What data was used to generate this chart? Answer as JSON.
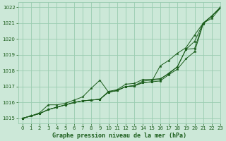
{
  "background_color": "#cce8d8",
  "grid_color": "#99ccb0",
  "line_color": "#1a5c1a",
  "title": "Graphe pression niveau de la mer (hPa)",
  "xlim": [
    -0.5,
    23
  ],
  "ylim": [
    1014.7,
    1022.3
  ],
  "yticks": [
    1015,
    1016,
    1017,
    1018,
    1019,
    1020,
    1021,
    1022
  ],
  "xticks": [
    0,
    1,
    2,
    3,
    4,
    5,
    6,
    7,
    8,
    9,
    10,
    11,
    12,
    13,
    14,
    15,
    16,
    17,
    18,
    19,
    20,
    21,
    22,
    23
  ],
  "xlabel_size": 6.0,
  "series": [
    [
      1015.0,
      1015.15,
      1015.3,
      1015.55,
      1015.7,
      1015.85,
      1016.0,
      1016.1,
      1016.15,
      1016.2,
      1016.7,
      1016.8,
      1017.15,
      1017.2,
      1017.45,
      1017.45,
      1017.5,
      1017.8,
      1018.25,
      1019.35,
      1019.4,
      1021.0,
      1021.45,
      1022.0
    ],
    [
      1015.0,
      1015.15,
      1015.3,
      1015.55,
      1015.7,
      1015.85,
      1016.0,
      1016.1,
      1016.15,
      1016.2,
      1016.65,
      1016.75,
      1017.0,
      1017.05,
      1017.25,
      1017.3,
      1017.35,
      1017.75,
      1018.1,
      1018.75,
      1019.2,
      1020.95,
      1021.45,
      1021.95
    ],
    [
      1015.0,
      1015.15,
      1015.3,
      1015.55,
      1015.7,
      1015.85,
      1016.0,
      1016.1,
      1016.15,
      1016.2,
      1016.65,
      1016.75,
      1017.0,
      1017.05,
      1017.25,
      1017.3,
      1018.3,
      1018.65,
      1019.1,
      1019.45,
      1020.25,
      1021.0,
      1021.3,
      1021.95
    ],
    [
      1015.0,
      1015.15,
      1015.35,
      1015.85,
      1015.85,
      1015.95,
      1016.15,
      1016.35,
      1016.9,
      1017.4,
      1016.65,
      1016.75,
      1017.0,
      1017.05,
      1017.35,
      1017.4,
      1017.45,
      1017.85,
      1018.25,
      1019.35,
      1019.85,
      1021.0,
      1021.45,
      1022.0
    ]
  ]
}
